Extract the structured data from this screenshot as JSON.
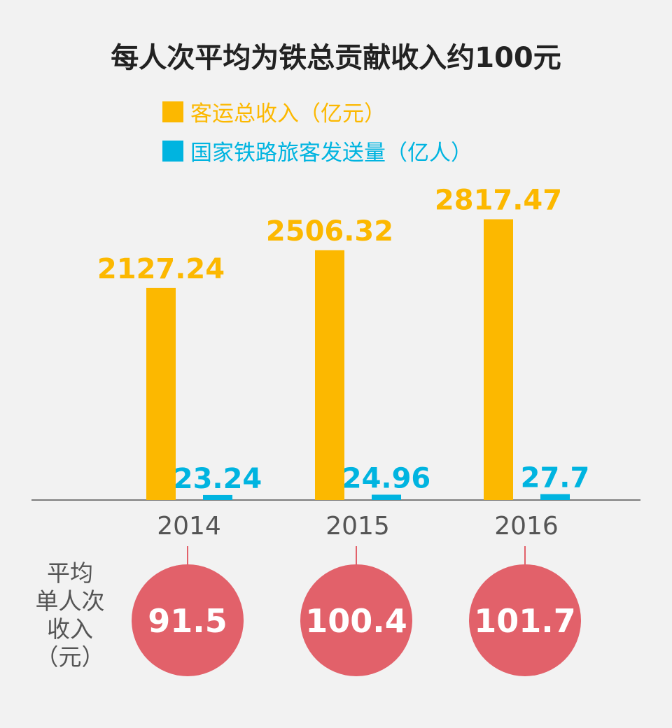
{
  "title": "每人次平均为铁总贡献收入约100元",
  "colors": {
    "revenue": "#fcb800",
    "passengers": "#00b4e0",
    "circle": "#e2616a",
    "axis": "#555555"
  },
  "per_capita": {
    "label": "平均\n单人次\n收入\n（元）",
    "values": [
      91.5,
      100.4,
      101.7
    ]
  },
  "chart_data": {
    "type": "bar",
    "title": "每人次平均为铁总贡献收入约100元",
    "categories": [
      "2014",
      "2015",
      "2016"
    ],
    "series": [
      {
        "name": "客运总收入（亿元）",
        "color": "#fcb800",
        "values": [
          2127.24,
          2506.32,
          2817.47
        ],
        "labels": [
          "2127.24",
          "2506.32",
          "2817.47"
        ]
      },
      {
        "name": "国家铁路旅客发送量（亿人）",
        "color": "#00b4e0",
        "values": [
          23.24,
          24.96,
          27.7
        ],
        "labels": [
          "23.24",
          "24.96",
          "27.7"
        ]
      }
    ],
    "legend": "top-left",
    "grid": false
  }
}
